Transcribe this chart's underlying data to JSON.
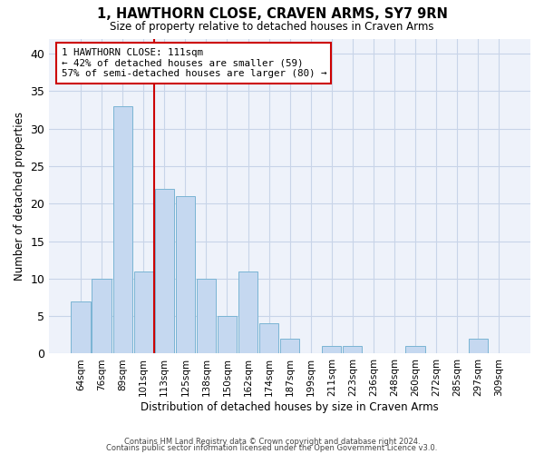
{
  "title": "1, HAWTHORN CLOSE, CRAVEN ARMS, SY7 9RN",
  "subtitle": "Size of property relative to detached houses in Craven Arms",
  "xlabel": "Distribution of detached houses by size in Craven Arms",
  "ylabel": "Number of detached properties",
  "categories": [
    "64sqm",
    "76sqm",
    "89sqm",
    "101sqm",
    "113sqm",
    "125sqm",
    "138sqm",
    "150sqm",
    "162sqm",
    "174sqm",
    "187sqm",
    "199sqm",
    "211sqm",
    "223sqm",
    "236sqm",
    "248sqm",
    "260sqm",
    "272sqm",
    "285sqm",
    "297sqm",
    "309sqm"
  ],
  "values": [
    7,
    10,
    33,
    11,
    22,
    21,
    10,
    5,
    11,
    4,
    2,
    0,
    1,
    1,
    0,
    0,
    1,
    0,
    0,
    2,
    0
  ],
  "bar_color": "#c5d8f0",
  "bar_edge_color": "#7ab4d4",
  "vline_x": 4,
  "vline_color": "#cc0000",
  "annotation_text": "1 HAWTHORN CLOSE: 111sqm\n← 42% of detached houses are smaller (59)\n57% of semi-detached houses are larger (80) →",
  "annotation_box_color": "#cc0000",
  "grid_color": "#c8d4e8",
  "background_color": "#eef2fa",
  "footer_line1": "Contains HM Land Registry data © Crown copyright and database right 2024.",
  "footer_line2": "Contains public sector information licensed under the Open Government Licence v3.0.",
  "ylim": [
    0,
    42
  ],
  "yticks": [
    0,
    5,
    10,
    15,
    20,
    25,
    30,
    35,
    40
  ]
}
